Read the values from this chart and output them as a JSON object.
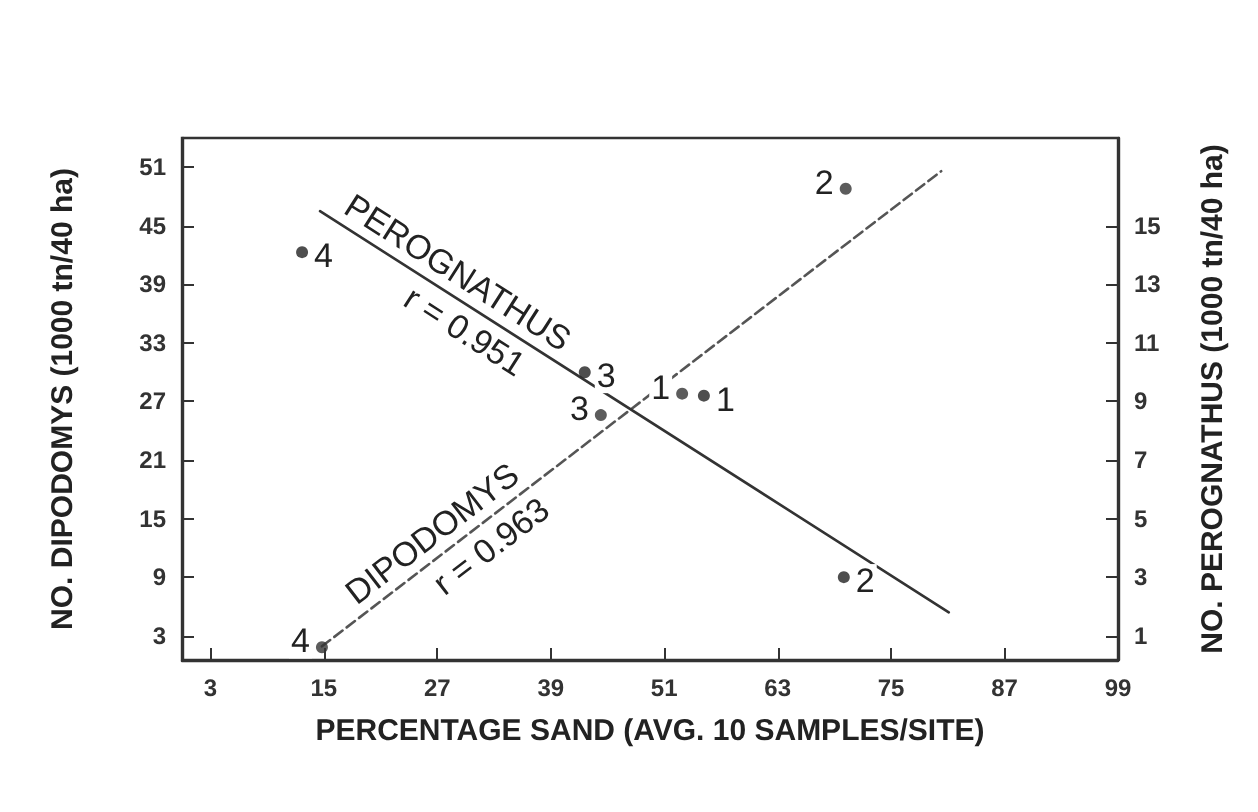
{
  "chart_data": {
    "type": "scatter",
    "xlabel": "PERCENTAGE SAND (AVG. 10 SAMPLES/SITE)",
    "ylabel": "NO. DIPODOMYS (1000 tn/40 ha)",
    "y2label": "NO. PEROGNATHUS (1000 tn/40 ha)",
    "xlim": [
      0,
      99
    ],
    "xticks": [
      3,
      15,
      27,
      39,
      51,
      63,
      75,
      87,
      99
    ],
    "ylim": [
      0.5,
      54
    ],
    "yticks": [
      3,
      9,
      15,
      21,
      27,
      33,
      39,
      45,
      51
    ],
    "y2lim": [
      0.17,
      18
    ],
    "y2ticks": [
      1,
      3,
      5,
      7,
      9,
      11,
      13,
      15
    ],
    "grid": false,
    "legend": false,
    "series": [
      {
        "type": "scatter",
        "color": "#333333",
        "axis": "y",
        "marker": "circle",
        "x": [
          52.9,
          70.2,
          44.3,
          14.8
        ],
        "values": [
          27.8,
          48.8,
          25.6,
          1.8
        ]
      },
      {
        "type": "scatter",
        "color": "#222222",
        "axis": "y2",
        "marker": "circle",
        "x": [
          55.2,
          70,
          42.6,
          12.7
        ],
        "values": [
          9.2,
          3.0,
          10.0,
          14.1
        ]
      },
      {
        "type": "line",
        "name": "DIPODOMYS",
        "color": "#555555",
        "axis": "y",
        "marker": "none",
        "line_style": "dashed",
        "x": [
          14.8,
          80.3
        ],
        "values": [
          1.9,
          50.6
        ]
      },
      {
        "type": "line",
        "name": "PEROGNATHUS",
        "color": "#333333",
        "axis": "y2",
        "marker": "none",
        "line_style": "solid",
        "x": [
          14.6,
          81.1
        ],
        "values": [
          15.5,
          1.8
        ]
      }
    ],
    "annotations": [
      "r = 0.963",
      "r = 0.951",
      {
        "text": "1",
        "x": 52.9,
        "y": 27.8
      },
      {
        "text": "2",
        "x": 70.2,
        "y": 48.8
      },
      {
        "text": "3",
        "x": 44.3,
        "y": 25.6
      },
      {
        "text": "4",
        "x": 14.8,
        "y": 1.8
      },
      {
        "text": "1",
        "x": 55.2,
        "y": 27.6
      },
      {
        "text": "2",
        "x": 70,
        "y": 9
      },
      {
        "text": "3",
        "x": 42.6,
        "y": 30
      },
      {
        "text": "4",
        "x": 12.7,
        "y": 42.3
      }
    ]
  }
}
